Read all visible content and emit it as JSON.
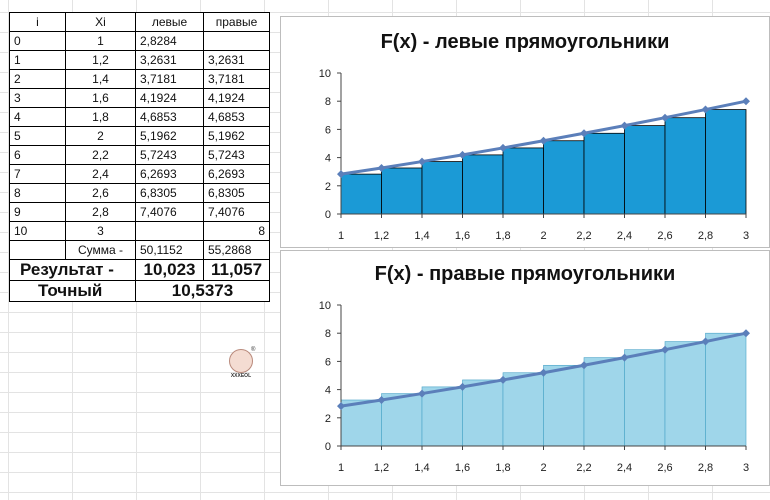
{
  "table": {
    "headers": [
      "i",
      "Xi",
      "левые",
      "правые"
    ],
    "rows": [
      [
        "0",
        "1",
        "2,8284",
        ""
      ],
      [
        "1",
        "1,2",
        "3,2631",
        "3,2631"
      ],
      [
        "2",
        "1,4",
        "3,7181",
        "3,7181"
      ],
      [
        "3",
        "1,6",
        "4,1924",
        "4,1924"
      ],
      [
        "4",
        "1,8",
        "4,6853",
        "4,6853"
      ],
      [
        "5",
        "2",
        "5,1962",
        "5,1962"
      ],
      [
        "6",
        "2,2",
        "5,7243",
        "5,7243"
      ],
      [
        "7",
        "2,4",
        "6,2693",
        "6,2693"
      ],
      [
        "8",
        "2,6",
        "6,8305",
        "6,8305"
      ],
      [
        "9",
        "2,8",
        "7,4076",
        "7,4076"
      ],
      [
        "10",
        "3",
        "",
        "8"
      ]
    ],
    "sum_row": {
      "label": "Сумма -",
      "left": "50,1152",
      "right": "55,2868"
    },
    "result_row": {
      "label": "Результат -",
      "left": "10,023",
      "right": "11,057"
    },
    "exact_row": {
      "label": "Точный",
      "value": "10,5373"
    }
  },
  "logo": {
    "text": "XXXEOL",
    "mark": "®"
  },
  "chart_data": [
    {
      "type": "bar",
      "title": "F(x) - левые прямоугольники",
      "categories": [
        "1",
        "1,2",
        "1,4",
        "1,6",
        "1,8",
        "2",
        "2,2",
        "2,4",
        "2,6",
        "2,8",
        "3"
      ],
      "x": [
        1,
        1.2,
        1.4,
        1.6,
        1.8,
        2,
        2.2,
        2.4,
        2.6,
        2.8,
        3
      ],
      "bars": [
        2.8284,
        3.2631,
        3.7181,
        4.1924,
        4.6853,
        5.1962,
        5.7243,
        6.2693,
        6.8305,
        7.4076
      ],
      "line": [
        2.8284,
        3.2631,
        3.7181,
        4.1924,
        4.6853,
        5.1962,
        5.7243,
        6.2693,
        6.8305,
        7.4076,
        8
      ],
      "yticks": [
        "0",
        "2",
        "4",
        "6",
        "8",
        "10"
      ],
      "ylim": [
        0,
        10
      ],
      "grid": false,
      "bar_color": "#1b9ad6",
      "line_color": "#5b7fba"
    },
    {
      "type": "bar",
      "title": "F(x) - правые прямоугольники",
      "categories": [
        "1",
        "1,2",
        "1,4",
        "1,6",
        "1,8",
        "2",
        "2,2",
        "2,4",
        "2,6",
        "2,8",
        "3"
      ],
      "x": [
        1,
        1.2,
        1.4,
        1.6,
        1.8,
        2,
        2.2,
        2.4,
        2.6,
        2.8,
        3
      ],
      "bars": [
        3.2631,
        3.7181,
        4.1924,
        4.6853,
        5.1962,
        5.7243,
        6.2693,
        6.8305,
        7.4076,
        8
      ],
      "line": [
        2.8284,
        3.2631,
        3.7181,
        4.1924,
        4.6853,
        5.1962,
        5.7243,
        6.2693,
        6.8305,
        7.4076,
        8
      ],
      "yticks": [
        "0",
        "2",
        "4",
        "6",
        "8",
        "10"
      ],
      "ylim": [
        0,
        10
      ],
      "grid": false,
      "bar_color": "#9fd6ea",
      "line_color": "#5b7fba"
    }
  ]
}
